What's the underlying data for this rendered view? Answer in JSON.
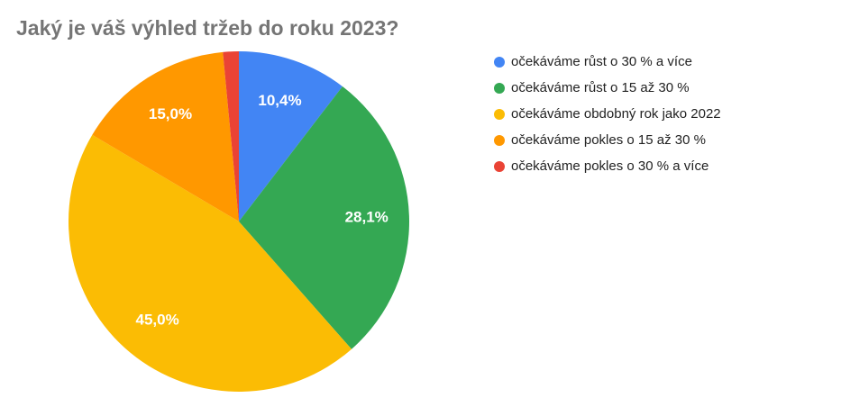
{
  "chart_data": {
    "type": "pie",
    "title": "Jaký je váš výhled tržeb do roku 2023?",
    "title_color": "#757575",
    "legend_position": "right",
    "start_angle_deg": 0,
    "direction": "clockwise",
    "value_label_color": "#ffffff",
    "slices": [
      {
        "label": "očekáváme růst o 30 % a více",
        "value": 10.4,
        "display": "10,4%",
        "color": "#4285F4"
      },
      {
        "label": "očekáváme růst o 15 až 30 %",
        "value": 28.1,
        "display": "28,1%",
        "color": "#34A853"
      },
      {
        "label": "očekáváme obdobný rok jako 2022",
        "value": 45.0,
        "display": "45,0%",
        "color": "#FBBC04"
      },
      {
        "label": "očekáváme pokles o 15 až 30 %",
        "value": 15.0,
        "display": "15,0%",
        "color": "#FF9800"
      },
      {
        "label": "očekáváme pokles o 30 % a více",
        "value": 1.5,
        "display": "",
        "color": "#EA4335"
      }
    ]
  }
}
